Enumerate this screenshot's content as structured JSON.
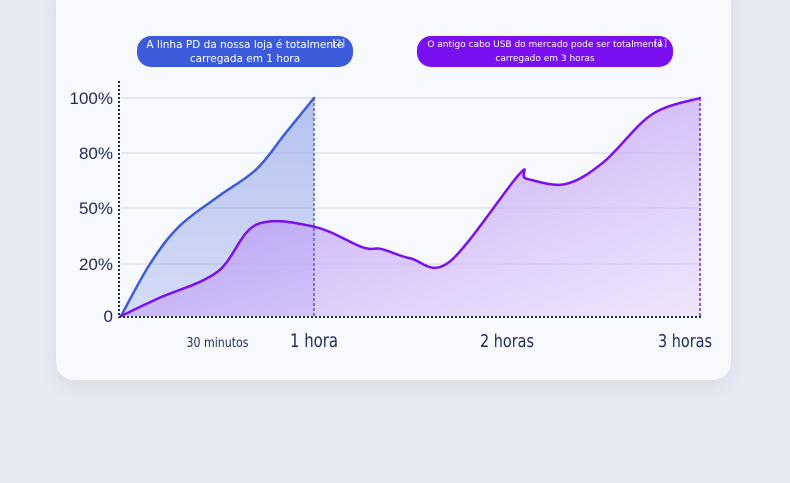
{
  "chart_data": {
    "type": "area",
    "x_ticks": [
      {
        "value": 0.5,
        "label": "30 minutos"
      },
      {
        "value": 1,
        "label": "1 hora"
      },
      {
        "value": 2,
        "label": "2 horas"
      },
      {
        "value": 3,
        "label": "3 horas"
      }
    ],
    "y_ticks": [
      {
        "value": 0,
        "label": "0"
      },
      {
        "value": 20,
        "label": "20%"
      },
      {
        "value": 50,
        "label": "50%"
      },
      {
        "value": 80,
        "label": "80%"
      },
      {
        "value": 100,
        "label": "100%"
      }
    ],
    "xlim": [
      0,
      3
    ],
    "series": [
      {
        "id": "pd",
        "color": "#3b5bdb",
        "x": [
          0,
          0.15,
          0.3,
          0.5,
          0.7,
          0.85,
          1
        ],
        "y": [
          0,
          20,
          40,
          56,
          71,
          87,
          100
        ]
      },
      {
        "id": "usb",
        "color": "#7a0ff0",
        "x": [
          0,
          0.2,
          0.5,
          0.7,
          1,
          1.25,
          1.35,
          1.5,
          1.7,
          2.06,
          2.1,
          2.3,
          2.5,
          2.75,
          3
        ],
        "y": [
          0,
          7,
          17,
          41,
          40,
          29,
          28,
          23,
          21,
          68,
          66,
          63,
          75,
          94,
          100
        ]
      }
    ],
    "annotations": [
      {
        "id": "pd",
        "text": "A linha PD da nossa loja é totalmente carregada em 1 hora",
        "cite": "[2]"
      },
      {
        "id": "usb",
        "text": "O antigo cabo USB do mercado pode ser totalmente carregado em 3 horas",
        "cite": "[1]"
      }
    ]
  }
}
